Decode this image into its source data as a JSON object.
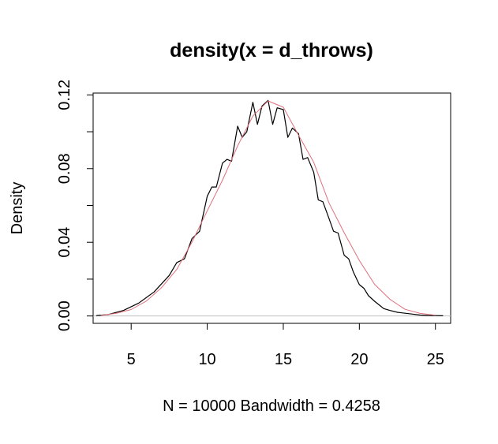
{
  "chart_data": {
    "type": "line",
    "title": "density(x = d_throws)",
    "xlabel": "N = 10000   Bandwidth = 0.4258",
    "ylabel": "Density",
    "xlim": [
      2.5,
      26
    ],
    "ylim": [
      -0.004,
      0.121
    ],
    "x_ticks": [
      5,
      10,
      15,
      20,
      25
    ],
    "x_tick_labels": [
      "5",
      "10",
      "15",
      "20",
      "25"
    ],
    "y_ticks": [
      0.0,
      0.02,
      0.04,
      0.06,
      0.08,
      0.1,
      0.12
    ],
    "y_tick_labels": [
      "0.00",
      "",
      "0.04",
      "",
      "0.08",
      "",
      "0.12"
    ],
    "grid": false,
    "legend": "none",
    "series": [
      {
        "color": "#000000",
        "x": [
          2.7,
          3.5,
          4.5,
          5.5,
          6.5,
          7.5,
          8.0,
          8.5,
          9.0,
          9.5,
          10.0,
          10.3,
          10.6,
          11.0,
          11.3,
          11.6,
          12.0,
          12.3,
          12.6,
          13.0,
          13.3,
          13.6,
          14.0,
          14.3,
          14.6,
          15.0,
          15.3,
          15.6,
          16.0,
          16.3,
          16.6,
          17.0,
          17.3,
          17.6,
          18.0,
          18.3,
          18.6,
          19.0,
          19.3,
          19.6,
          20.0,
          20.3,
          20.6,
          21.0,
          21.3,
          21.6,
          22.0,
          22.5,
          23.0,
          23.5,
          24.0,
          24.5,
          25.0,
          25.5
        ],
        "y": [
          0.0002,
          0.0008,
          0.003,
          0.007,
          0.013,
          0.022,
          0.029,
          0.031,
          0.042,
          0.046,
          0.065,
          0.07,
          0.07,
          0.083,
          0.085,
          0.084,
          0.103,
          0.097,
          0.1,
          0.116,
          0.104,
          0.114,
          0.117,
          0.104,
          0.113,
          0.112,
          0.097,
          0.102,
          0.099,
          0.085,
          0.086,
          0.078,
          0.063,
          0.062,
          0.053,
          0.046,
          0.045,
          0.033,
          0.031,
          0.024,
          0.017,
          0.015,
          0.011,
          0.008,
          0.006,
          0.004,
          0.003,
          0.002,
          0.0015,
          0.001,
          0.0005,
          0.0003,
          0.0002,
          0.0001
        ]
      },
      {
        "color": "#e0707c",
        "x": [
          3,
          4,
          5,
          6,
          7,
          8,
          9,
          10,
          11,
          12,
          13,
          14,
          15,
          16,
          17,
          18,
          19,
          20,
          21,
          22,
          23,
          24,
          25
        ],
        "y": [
          0.0003,
          0.0014,
          0.0035,
          0.0081,
          0.0154,
          0.0253,
          0.0401,
          0.0571,
          0.0737,
          0.0923,
          0.1085,
          0.1167,
          0.1133,
          0.0982,
          0.0834,
          0.0614,
          0.0452,
          0.0301,
          0.0172,
          0.0091,
          0.0036,
          0.0014,
          0.0004
        ]
      }
    ],
    "reference_line_y": 0
  },
  "colors": {
    "axis": "#000000",
    "density_line": "#000000",
    "normal_curve": "#e0707c",
    "zero_line": "#c0c0c0"
  }
}
